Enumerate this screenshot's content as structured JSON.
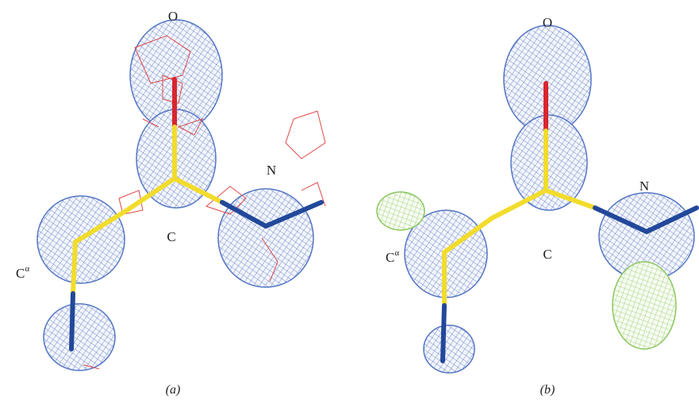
{
  "panels": [
    {
      "caption": "(a)",
      "atoms": {
        "oxygen": "O",
        "nitrogen": "N",
        "carbon": "C",
        "alpha_carbon": {
          "label": "C",
          "superscript": "α"
        }
      }
    },
    {
      "caption": "(b)",
      "atoms": {
        "oxygen": "O",
        "nitrogen": "N",
        "carbon": "C",
        "alpha_carbon": {
          "label": "C",
          "superscript": "α"
        }
      }
    }
  ]
}
